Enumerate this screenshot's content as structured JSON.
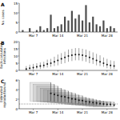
{
  "chart_data": [
    {
      "type": "bar",
      "title": "A",
      "ylabel": [
        "No. cases"
      ],
      "color": "#4d4d4d",
      "x": [
        4,
        5,
        6,
        7,
        8,
        9,
        10,
        11,
        12,
        13,
        14,
        15,
        16,
        17,
        18,
        19,
        20,
        21,
        22,
        23,
        24,
        25,
        26,
        27,
        28,
        29,
        30
      ],
      "values": [
        1,
        0,
        2,
        0,
        1,
        3,
        1,
        2,
        9,
        2,
        3,
        4,
        8,
        6,
        11,
        7,
        9,
        6,
        14,
        5,
        8,
        4,
        3,
        6,
        2,
        3,
        2
      ],
      "xlim": [
        3,
        31
      ],
      "xticks": [
        {
          "value": 7,
          "label": "Mar 7"
        },
        {
          "value": 14,
          "label": "Mar 14"
        },
        {
          "value": 21,
          "label": "Mar 21"
        },
        {
          "value": 28,
          "label": "Mar 28"
        }
      ],
      "ylim": [
        0,
        15
      ],
      "yticks": [
        0,
        5,
        10,
        15
      ]
    },
    {
      "type": "errorbar",
      "title": "B",
      "ylabel": [
        "Back-calculated",
        "infections"
      ],
      "color": "#111111",
      "x": [
        5,
        6,
        7,
        8,
        9,
        10,
        11,
        12,
        13,
        14,
        15,
        16,
        17,
        18,
        19,
        20,
        21,
        22,
        23,
        24,
        25,
        26,
        27,
        28,
        29,
        30
      ],
      "values": [
        1,
        1.5,
        2,
        2.5,
        3,
        3.5,
        4.5,
        5,
        6,
        7,
        8,
        9,
        10,
        10.5,
        11,
        11,
        10.5,
        10,
        9,
        8,
        7,
        6,
        5,
        4,
        3.5,
        3
      ],
      "lower": [
        0,
        0.5,
        0.5,
        1,
        1,
        1.5,
        2,
        2.5,
        3,
        3.5,
        4.5,
        5,
        6,
        6.5,
        7,
        7,
        6.5,
        6,
        5,
        4.5,
        3.5,
        3,
        2.5,
        1.5,
        1,
        1
      ],
      "upper": [
        3,
        4,
        4.5,
        5,
        5.5,
        6,
        7.5,
        8,
        9.5,
        11,
        12,
        13,
        14.5,
        15,
        15.5,
        15.5,
        15,
        14.5,
        13.5,
        12.5,
        11.5,
        10.5,
        9,
        8,
        7,
        6.5
      ],
      "xlim": [
        3,
        31
      ],
      "xticks": [
        {
          "value": 7,
          "label": "Mar 7"
        },
        {
          "value": 14,
          "label": "Mar 14"
        },
        {
          "value": 21,
          "label": "Mar 21"
        },
        {
          "value": 28,
          "label": "Mar 28"
        }
      ],
      "ylim": [
        0,
        20
      ],
      "yticks": [
        0,
        5,
        10,
        15,
        20
      ]
    },
    {
      "type": "errorbar",
      "title": "C",
      "ylabel": [
        "Estimated",
        "reproduction no."
      ],
      "color": "#111111",
      "x": [
        12,
        13,
        14,
        15,
        16,
        17,
        18,
        19,
        20,
        21,
        22,
        23,
        24,
        25,
        26,
        27,
        28,
        29,
        30
      ],
      "window_start": [
        6,
        7,
        8,
        9,
        10,
        11,
        12,
        13,
        14,
        15,
        16,
        17,
        18,
        19,
        20,
        21,
        22,
        23,
        24
      ],
      "values": [
        3.2,
        3.0,
        2.8,
        2.6,
        2.5,
        2.3,
        2.1,
        2.0,
        1.8,
        1.7,
        1.5,
        1.4,
        1.3,
        1.2,
        1.1,
        1.0,
        0.9,
        0.9,
        0.8
      ],
      "lower": [
        1.6,
        1.5,
        1.5,
        1.4,
        1.4,
        1.3,
        1.2,
        1.2,
        1.1,
        1.0,
        0.9,
        0.9,
        0.8,
        0.7,
        0.7,
        0.6,
        0.5,
        0.5,
        0.4
      ],
      "upper": [
        5.5,
        5.1,
        4.7,
        4.3,
        4.0,
        3.7,
        3.4,
        3.2,
        2.9,
        2.7,
        2.4,
        2.2,
        2.1,
        1.9,
        1.8,
        1.6,
        1.5,
        1.5,
        1.4
      ],
      "reference_line": 1,
      "xlim": [
        3,
        31
      ],
      "xticks": [
        {
          "value": 7,
          "label": "Mar 7"
        },
        {
          "value": 14,
          "label": "Mar 14"
        },
        {
          "value": 21,
          "label": "Mar 21"
        },
        {
          "value": 28,
          "label": "Mar 28"
        }
      ],
      "ylim": [
        0,
        6
      ],
      "yticks": [
        0,
        2,
        4,
        6
      ]
    }
  ]
}
